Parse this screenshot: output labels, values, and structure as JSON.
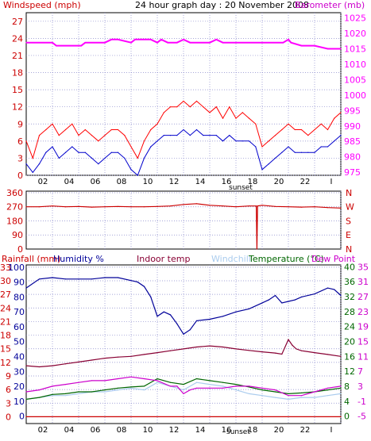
{
  "header": {
    "wind_label": "Windspeed (mph)",
    "title": "24 hour graph day : 20 November 2008",
    "baro_label": "Barometer (mb)"
  },
  "legend": {
    "rain": "Rainfall (mm)",
    "humidity": "Humidity %",
    "indoor": "Indoor temp",
    "windchill": "Windchill",
    "temperature": "Temperature (°C)",
    "dewpoint": "Dew Point"
  },
  "x_axis": {
    "ticks": [
      "02",
      "04",
      "06",
      "08",
      "10",
      "12",
      "14",
      "16",
      "18",
      "20",
      "22",
      "I"
    ],
    "sunset_label": "sunset"
  },
  "colors": {
    "wind_axis": "#cc0000",
    "baro": "#ff00ff",
    "gust": "#ff0000",
    "wind_avg": "#0000cc",
    "direction": "#cc0000",
    "humidity": "#000099",
    "indoor": "#880033",
    "windchill": "#aaccee",
    "temperature": "#006600",
    "dewpoint": "#cc00cc",
    "rain": "#cc0000",
    "temp_axis": "#006600",
    "dew_axis": "#cc00cc"
  },
  "chart_data": [
    {
      "type": "line",
      "id": "wind_baro",
      "x_unit": "hour",
      "xlim": [
        0,
        24
      ],
      "y_left": {
        "label": "Windspeed (mph)",
        "ticks": [
          0,
          3,
          6,
          9,
          12,
          15,
          18,
          21,
          24,
          27
        ],
        "lim": [
          0,
          28.5
        ]
      },
      "y_right": {
        "label": "Barometer (mb)",
        "ticks": [
          975,
          980,
          985,
          990,
          995,
          1000,
          1005,
          1010,
          1015,
          1020,
          1025
        ],
        "lim": [
          974,
          1026.7
        ]
      },
      "series": [
        {
          "name": "gust",
          "axis": "left",
          "x": [
            0,
            0.5,
            1,
            1.5,
            2,
            2.5,
            3,
            3.5,
            4,
            4.5,
            5,
            5.5,
            6,
            6.5,
            7,
            7.5,
            8,
            8.5,
            9,
            9.5,
            10,
            10.5,
            11,
            11.5,
            12,
            12.5,
            13,
            13.5,
            14,
            14.5,
            15,
            15.5,
            16,
            16.5,
            17,
            17.5,
            18,
            18.5,
            19,
            19.5,
            20,
            20.5,
            21,
            21.5,
            22,
            22.5,
            23,
            23.5,
            24
          ],
          "values": [
            6,
            3,
            7,
            8,
            9,
            7,
            8,
            9,
            7,
            8,
            7,
            6,
            7,
            8,
            8,
            7,
            5,
            3,
            6,
            8,
            9,
            11,
            12,
            12,
            13,
            12,
            13,
            12,
            11,
            12,
            10,
            12,
            10,
            11,
            10,
            9,
            5,
            6,
            7,
            8,
            9,
            8,
            8,
            7,
            8,
            9,
            8,
            10,
            11
          ]
        },
        {
          "name": "average",
          "axis": "left",
          "x": [
            0,
            0.5,
            1,
            1.5,
            2,
            2.5,
            3,
            3.5,
            4,
            4.5,
            5,
            5.5,
            6,
            6.5,
            7,
            7.5,
            8,
            8.5,
            9,
            9.5,
            10,
            10.5,
            11,
            11.5,
            12,
            12.5,
            13,
            13.5,
            14,
            14.5,
            15,
            15.5,
            16,
            16.5,
            17,
            17.5,
            18,
            18.5,
            19,
            19.5,
            20,
            20.5,
            21,
            21.5,
            22,
            22.5,
            23,
            23.5,
            24
          ],
          "values": [
            2,
            0.5,
            2,
            4,
            5,
            3,
            4,
            5,
            4,
            4,
            3,
            2,
            3,
            4,
            4,
            3,
            1,
            0,
            3,
            5,
            6,
            7,
            7,
            7,
            8,
            7,
            8,
            7,
            7,
            7,
            6,
            7,
            6,
            6,
            6,
            5,
            1,
            2,
            3,
            4,
            5,
            4,
            4,
            4,
            4,
            5,
            5,
            6,
            7
          ]
        },
        {
          "name": "barometer",
          "axis": "right",
          "x": [
            0,
            2,
            2.3,
            3,
            4.2,
            4.5,
            5.5,
            6,
            6.5,
            7,
            8,
            8.3,
            9,
            9.5,
            10,
            10.3,
            10.8,
            11.5,
            12,
            12.5,
            13,
            14,
            14.5,
            15,
            16,
            17,
            18,
            19,
            19.6,
            20,
            20.2,
            21,
            22,
            23,
            24
          ],
          "values": [
            1017,
            1017,
            1016,
            1016,
            1016,
            1017,
            1017,
            1017,
            1018,
            1018,
            1017,
            1018,
            1018,
            1018,
            1017,
            1018,
            1017,
            1017,
            1018,
            1017,
            1017,
            1017,
            1018,
            1017,
            1017,
            1017,
            1017,
            1017,
            1017,
            1018,
            1017,
            1016,
            1016,
            1015,
            1015
          ]
        }
      ]
    },
    {
      "type": "line",
      "id": "wind_direction",
      "x_unit": "hour",
      "xlim": [
        0,
        24
      ],
      "y_left": {
        "ticks": [
          0,
          90,
          180,
          270,
          360
        ],
        "lim": [
          0,
          370
        ]
      },
      "y_right": {
        "labels": [
          "N",
          "W",
          "S",
          "E",
          "N"
        ]
      },
      "series": [
        {
          "name": "direction",
          "x": [
            0,
            1,
            2,
            3,
            4,
            5,
            6,
            7,
            8,
            9,
            10,
            11,
            12,
            13,
            14,
            15,
            16,
            17,
            17.55,
            17.6,
            17.65,
            18,
            19,
            20,
            21,
            22,
            23,
            24
          ],
          "values": [
            270,
            270,
            275,
            270,
            272,
            268,
            270,
            272,
            270,
            270,
            272,
            275,
            285,
            290,
            280,
            275,
            270,
            275,
            275,
            0,
            275,
            280,
            272,
            270,
            268,
            270,
            265,
            262
          ]
        }
      ]
    },
    {
      "type": "line",
      "id": "temp_humidity",
      "x_unit": "hour",
      "xlim": [
        0,
        24
      ],
      "y_left_rain": {
        "label": "Rainfall (mm)",
        "ticks": [
          0,
          3,
          6,
          9,
          12,
          15,
          18,
          21,
          24,
          27,
          30,
          33
        ],
        "lim": [
          -1.5,
          33.5
        ]
      },
      "y_left_humidity": {
        "label": "Humidity %",
        "ticks": [
          0,
          10,
          20,
          30,
          40,
          50,
          60,
          70,
          80,
          90,
          100
        ],
        "lim": [
          -5,
          101.5
        ]
      },
      "y_right_temp": {
        "label": "Temperature (°C)",
        "ticks": [
          0,
          4,
          8,
          12,
          16,
          20,
          24,
          28,
          32,
          36,
          40
        ],
        "lim": [
          -2,
          40.5
        ]
      },
      "y_right_dew": {
        "label": "Dew Point",
        "ticks": [
          -5,
          -1,
          3,
          7,
          11,
          15,
          19,
          23,
          27,
          31,
          35
        ],
        "lim": [
          -7,
          35.5
        ]
      },
      "series": [
        {
          "name": "humidity",
          "axis": "humidity",
          "x": [
            0,
            1,
            2,
            3,
            4,
            5,
            6,
            7,
            8,
            8.5,
            9,
            9.5,
            10,
            10.5,
            11,
            11.5,
            12,
            12.5,
            13,
            14,
            15,
            16,
            17,
            18,
            18.5,
            19,
            19.5,
            20,
            20.5,
            21,
            22,
            23,
            23.5,
            24
          ],
          "values": [
            86,
            92,
            93,
            92,
            92,
            92,
            93,
            93,
            91,
            90,
            87,
            80,
            67,
            70,
            68,
            62,
            55,
            58,
            64,
            65,
            67,
            70,
            72,
            76,
            78,
            81,
            76,
            77,
            78,
            80,
            82,
            86,
            85,
            81
          ]
        },
        {
          "name": "indoor_temp",
          "axis": "temp",
          "x": [
            0,
            1,
            2,
            3,
            4,
            5,
            6,
            7,
            8,
            9,
            10,
            11,
            12,
            13,
            14,
            15,
            16,
            17,
            18,
            19,
            19.5,
            20,
            20.3,
            20.6,
            21,
            22,
            23,
            24
          ],
          "values": [
            13.5,
            13.2,
            13.5,
            14,
            14.5,
            15,
            15.5,
            15.8,
            16,
            16.5,
            17,
            17.5,
            18,
            18.5,
            18.8,
            18.5,
            18,
            17.6,
            17.2,
            16.9,
            16.6,
            20.5,
            19,
            18,
            17.5,
            17,
            16.5,
            16
          ]
        },
        {
          "name": "windchill",
          "axis": "temp",
          "x": [
            0,
            1,
            2,
            3,
            4,
            5,
            6,
            7,
            8,
            9,
            10,
            11,
            12,
            13,
            14,
            15,
            16,
            17,
            18,
            19,
            20,
            21,
            22,
            23,
            24
          ],
          "values": [
            4.5,
            5,
            5.5,
            5.5,
            6,
            6.5,
            6.5,
            7,
            7.5,
            7,
            9,
            8,
            7,
            9,
            8.5,
            8,
            7,
            6,
            5.5,
            5,
            4.5,
            5,
            5,
            5.5,
            6
          ]
        },
        {
          "name": "temperature",
          "axis": "temp",
          "x": [
            0,
            1,
            2,
            3,
            4,
            5,
            6,
            7,
            8,
            9,
            10,
            11,
            12,
            13,
            14,
            15,
            16,
            17,
            18,
            19,
            20,
            21,
            22,
            23,
            24
          ],
          "values": [
            4.5,
            5,
            5.8,
            6,
            6.5,
            6.5,
            7,
            7.5,
            7.8,
            8,
            10,
            9,
            8.5,
            10,
            9.5,
            9,
            8.5,
            7.8,
            7,
            6.5,
            6,
            6.2,
            6.5,
            7,
            7.5
          ]
        },
        {
          "name": "dewpoint",
          "axis": "dew",
          "x": [
            0,
            1,
            2,
            3,
            4,
            5,
            6,
            7,
            8,
            9,
            10,
            11,
            11.5,
            12,
            12.5,
            13,
            14,
            15,
            16,
            17,
            18,
            19,
            20,
            21,
            22,
            23,
            24
          ],
          "values": [
            1.5,
            2,
            3,
            3.5,
            4,
            4.5,
            4.5,
            5,
            5.5,
            5,
            4.5,
            3,
            3,
            1,
            2,
            2.5,
            2.5,
            2.5,
            3,
            3,
            2.5,
            2,
            0.5,
            0.5,
            1.5,
            2.5,
            3
          ]
        },
        {
          "name": "rainfall",
          "axis": "rain",
          "x": [
            0,
            24
          ],
          "values": [
            0,
            0
          ]
        }
      ]
    }
  ]
}
